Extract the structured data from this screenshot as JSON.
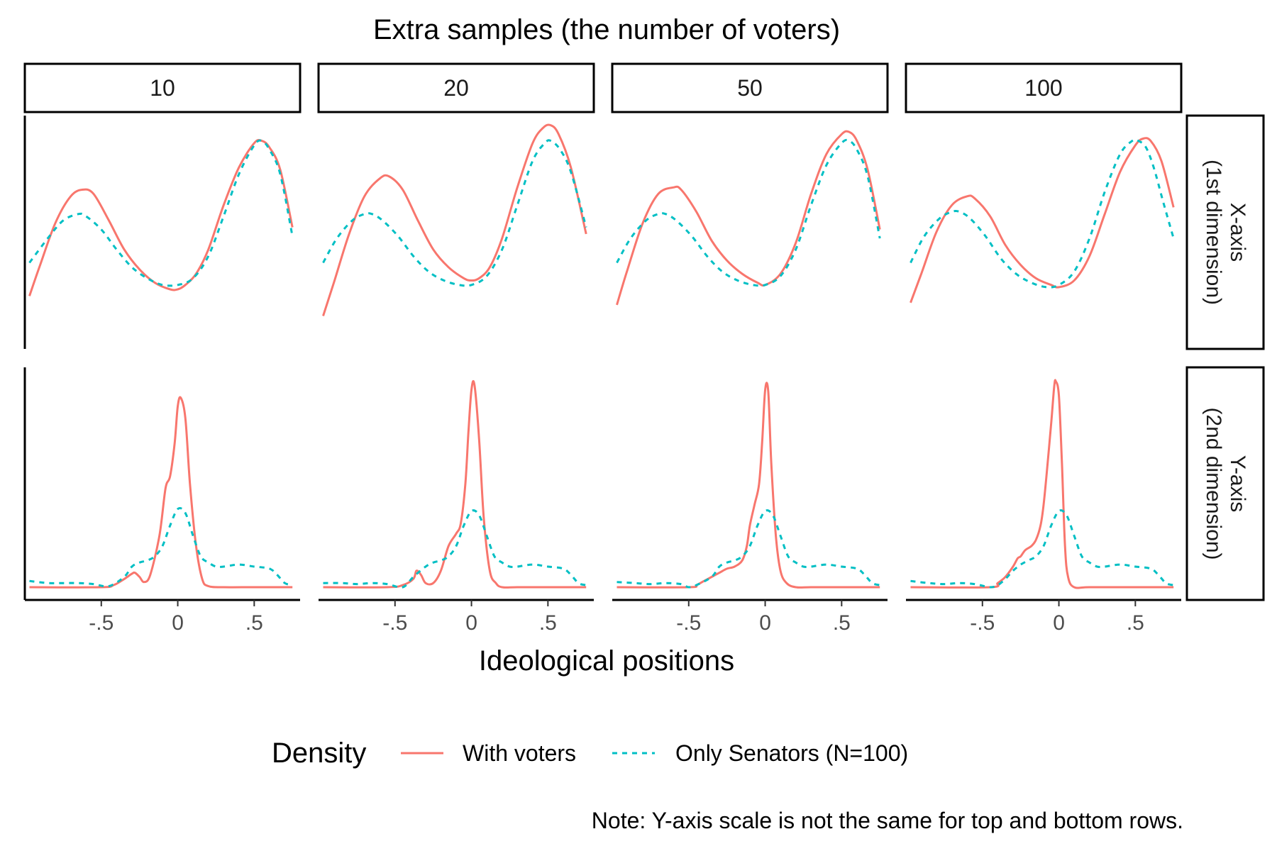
{
  "chart_data": {
    "type": "line",
    "title": "Extra samples (the number of voters)",
    "xlabel": "Ideological positions",
    "ylabel": "",
    "xlim": [
      -1.0,
      0.8
    ],
    "x_ticks": [
      {
        "value": -0.5,
        "label": "-.5"
      },
      {
        "value": 0,
        "label": "0"
      },
      {
        "value": 0.5,
        "label": ".5"
      }
    ],
    "column_facet_labels": [
      "10",
      "20",
      "50",
      "100"
    ],
    "row_facet_labels": [
      [
        "X-axis",
        "(1st dimension)"
      ],
      [
        "Y-axis",
        "(2nd dimension)"
      ]
    ],
    "row_ylims": [
      [
        0.16,
        1.04
      ],
      [
        0.0,
        1.02
      ]
    ],
    "legend": {
      "title": "Density",
      "position": "bottom",
      "entries": [
        {
          "label": "With voters",
          "color": "#F8766D",
          "dash": "solid"
        },
        {
          "label": "Only Senators (N=100)",
          "color": "#00BFC4",
          "dash": "dashed"
        }
      ]
    },
    "caption": "Note: Y-axis scale is not the same for top and bottom rows.",
    "panels": [
      {
        "row": 0,
        "col": 0,
        "series": [
          {
            "name": "With voters",
            "x": [
              -0.97,
              -0.9,
              -0.8,
              -0.7,
              -0.62,
              -0.55,
              -0.45,
              -0.35,
              -0.25,
              -0.15,
              -0.05,
              0,
              0.05,
              0.12,
              0.2,
              0.3,
              0.4,
              0.5,
              0.55,
              0.6,
              0.67,
              0.75
            ],
            "y": [
              0.29,
              0.43,
              0.62,
              0.74,
              0.77,
              0.75,
              0.63,
              0.5,
              0.41,
              0.35,
              0.32,
              0.32,
              0.34,
              0.39,
              0.5,
              0.7,
              0.87,
              0.98,
              0.99,
              0.96,
              0.86,
              0.6
            ]
          },
          {
            "name": "Only Senators (N=100)",
            "x": [
              -0.97,
              -0.85,
              -0.75,
              -0.65,
              -0.6,
              -0.5,
              -0.4,
              -0.3,
              -0.2,
              -0.1,
              0,
              0.1,
              0.2,
              0.3,
              0.4,
              0.5,
              0.55,
              0.6,
              0.67,
              0.75
            ],
            "y": [
              0.44,
              0.55,
              0.63,
              0.66,
              0.65,
              0.59,
              0.5,
              0.42,
              0.37,
              0.34,
              0.34,
              0.37,
              0.47,
              0.65,
              0.84,
              0.97,
              0.99,
              0.95,
              0.84,
              0.56
            ]
          }
        ]
      },
      {
        "row": 0,
        "col": 1,
        "series": [
          {
            "name": "With voters",
            "x": [
              -0.97,
              -0.9,
              -0.8,
              -0.7,
              -0.6,
              -0.54,
              -0.45,
              -0.35,
              -0.25,
              -0.15,
              -0.05,
              0,
              0.05,
              0.12,
              0.2,
              0.3,
              0.4,
              0.47,
              0.52,
              0.57,
              0.65,
              0.75
            ],
            "y": [
              0.2,
              0.35,
              0.57,
              0.74,
              0.82,
              0.83,
              0.77,
              0.63,
              0.5,
              0.42,
              0.37,
              0.36,
              0.37,
              0.42,
              0.55,
              0.78,
              0.98,
              1.05,
              1.06,
              1.02,
              0.87,
              0.57
            ]
          },
          {
            "name": "Only Senators (N=100)",
            "x": [
              -0.97,
              -0.88,
              -0.78,
              -0.7,
              -0.65,
              -0.58,
              -0.48,
              -0.38,
              -0.28,
              -0.18,
              -0.08,
              0,
              0.1,
              0.2,
              0.3,
              0.4,
              0.48,
              0.52,
              0.58,
              0.65,
              0.75
            ],
            "y": [
              0.44,
              0.55,
              0.63,
              0.66,
              0.66,
              0.63,
              0.56,
              0.47,
              0.4,
              0.36,
              0.34,
              0.34,
              0.38,
              0.5,
              0.7,
              0.9,
              0.98,
              0.99,
              0.95,
              0.85,
              0.6
            ]
          }
        ]
      },
      {
        "row": 0,
        "col": 2,
        "series": [
          {
            "name": "With voters",
            "x": [
              -0.97,
              -0.9,
              -0.8,
              -0.7,
              -0.6,
              -0.55,
              -0.45,
              -0.35,
              -0.25,
              -0.15,
              -0.05,
              0,
              0.1,
              0.2,
              0.3,
              0.4,
              0.5,
              0.55,
              0.6,
              0.67,
              0.75
            ],
            "y": [
              0.25,
              0.41,
              0.62,
              0.75,
              0.78,
              0.77,
              0.67,
              0.54,
              0.45,
              0.39,
              0.35,
              0.34,
              0.39,
              0.53,
              0.75,
              0.93,
              1.02,
              1.03,
              0.99,
              0.86,
              0.59
            ]
          },
          {
            "name": "Only Senators (N=100)",
            "x": [
              -0.97,
              -0.88,
              -0.78,
              -0.7,
              -0.65,
              -0.58,
              -0.48,
              -0.38,
              -0.28,
              -0.18,
              -0.08,
              0,
              0.1,
              0.2,
              0.3,
              0.4,
              0.5,
              0.55,
              0.6,
              0.67,
              0.75
            ],
            "y": [
              0.44,
              0.55,
              0.63,
              0.66,
              0.66,
              0.63,
              0.56,
              0.47,
              0.4,
              0.36,
              0.34,
              0.34,
              0.38,
              0.5,
              0.7,
              0.88,
              0.98,
              0.99,
              0.95,
              0.83,
              0.55
            ]
          }
        ]
      },
      {
        "row": 0,
        "col": 3,
        "series": [
          {
            "name": "With voters",
            "x": [
              -0.97,
              -0.9,
              -0.8,
              -0.7,
              -0.6,
              -0.55,
              -0.45,
              -0.35,
              -0.25,
              -0.15,
              -0.05,
              0,
              0.1,
              0.2,
              0.3,
              0.4,
              0.5,
              0.55,
              0.6,
              0.67,
              0.75
            ],
            "y": [
              0.26,
              0.39,
              0.58,
              0.7,
              0.74,
              0.73,
              0.65,
              0.52,
              0.43,
              0.37,
              0.34,
              0.33,
              0.36,
              0.47,
              0.66,
              0.85,
              0.97,
              1.0,
              0.99,
              0.9,
              0.69
            ]
          },
          {
            "name": "Only Senators (N=100)",
            "x": [
              -0.97,
              -0.88,
              -0.78,
              -0.7,
              -0.65,
              -0.58,
              -0.48,
              -0.38,
              -0.28,
              -0.18,
              -0.08,
              0,
              0.1,
              0.2,
              0.3,
              0.4,
              0.48,
              0.52,
              0.57,
              0.62,
              0.68,
              0.75
            ],
            "y": [
              0.44,
              0.56,
              0.64,
              0.67,
              0.67,
              0.64,
              0.56,
              0.46,
              0.39,
              0.35,
              0.33,
              0.34,
              0.4,
              0.55,
              0.76,
              0.93,
              0.99,
              0.99,
              0.96,
              0.87,
              0.72,
              0.55
            ]
          }
        ]
      },
      {
        "row": 1,
        "col": 0,
        "series": [
          {
            "name": "With voters",
            "x": [
              -0.97,
              -0.5,
              -0.42,
              -0.36,
              -0.3,
              -0.28,
              -0.25,
              -0.22,
              -0.18,
              -0.12,
              -0.08,
              -0.05,
              -0.02,
              0,
              0.02,
              0.05,
              0.08,
              0.12,
              0.16,
              0.2,
              0.3,
              0.5,
              0.75
            ],
            "y": [
              0.0,
              0.0,
              0.01,
              0.035,
              0.065,
              0.07,
              0.05,
              0.025,
              0.06,
              0.25,
              0.48,
              0.54,
              0.7,
              0.88,
              0.92,
              0.82,
              0.5,
              0.2,
              0.04,
              0.005,
              0.0,
              0.0,
              0.0
            ]
          },
          {
            "name": "Only Senators (N=100)",
            "x": [
              -0.97,
              -0.85,
              -0.75,
              -0.65,
              -0.55,
              -0.45,
              -0.35,
              -0.3,
              -0.25,
              -0.2,
              -0.15,
              -0.1,
              -0.05,
              0,
              0.05,
              0.1,
              0.15,
              0.2,
              0.25,
              0.3,
              0.4,
              0.5,
              0.6,
              0.65,
              0.7,
              0.75
            ],
            "y": [
              0.03,
              0.02,
              0.02,
              0.02,
              0.015,
              0.005,
              0.05,
              0.1,
              0.12,
              0.13,
              0.15,
              0.2,
              0.3,
              0.38,
              0.36,
              0.25,
              0.15,
              0.12,
              0.1,
              0.1,
              0.11,
              0.1,
              0.09,
              0.06,
              0.02,
              0.01
            ]
          }
        ]
      },
      {
        "row": 1,
        "col": 1,
        "series": [
          {
            "name": "With voters",
            "x": [
              -0.97,
              -0.55,
              -0.45,
              -0.38,
              -0.36,
              -0.33,
              -0.3,
              -0.25,
              -0.2,
              -0.15,
              -0.1,
              -0.07,
              -0.04,
              -0.02,
              0,
              0.02,
              0.05,
              0.08,
              0.12,
              0.16,
              0.2,
              0.3,
              0.5,
              0.75
            ],
            "y": [
              0.0,
              0.0,
              0.01,
              0.04,
              0.08,
              0.06,
              0.02,
              0.02,
              0.08,
              0.2,
              0.26,
              0.31,
              0.5,
              0.75,
              0.96,
              0.98,
              0.72,
              0.34,
              0.08,
              0.02,
              0.0,
              0.0,
              0.0,
              0.0
            ]
          },
          {
            "name": "Only Senators (N=100)",
            "x": [
              -0.97,
              -0.85,
              -0.75,
              -0.65,
              -0.55,
              -0.45,
              -0.38,
              -0.3,
              -0.25,
              -0.2,
              -0.15,
              -0.1,
              -0.05,
              0,
              0.05,
              0.1,
              0.15,
              0.2,
              0.25,
              0.3,
              0.4,
              0.5,
              0.6,
              0.65,
              0.7,
              0.75
            ],
            "y": [
              0.02,
              0.02,
              0.015,
              0.02,
              0.015,
              0.0,
              0.05,
              0.1,
              0.12,
              0.13,
              0.15,
              0.2,
              0.3,
              0.37,
              0.35,
              0.25,
              0.15,
              0.12,
              0.1,
              0.1,
              0.11,
              0.1,
              0.09,
              0.06,
              0.02,
              0.01
            ]
          }
        ]
      },
      {
        "row": 1,
        "col": 2,
        "series": [
          {
            "name": "With voters",
            "x": [
              -0.97,
              -0.5,
              -0.45,
              -0.4,
              -0.35,
              -0.3,
              -0.25,
              -0.2,
              -0.15,
              -0.12,
              -0.1,
              -0.07,
              -0.04,
              -0.02,
              0,
              0.02,
              0.04,
              0.07,
              0.1,
              0.14,
              0.2,
              0.3,
              0.5,
              0.75
            ],
            "y": [
              0.0,
              0.0,
              0.01,
              0.03,
              0.05,
              0.07,
              0.09,
              0.1,
              0.13,
              0.2,
              0.3,
              0.4,
              0.5,
              0.7,
              0.96,
              0.95,
              0.6,
              0.25,
              0.08,
              0.02,
              0.0,
              0.0,
              0.0,
              0.0
            ]
          },
          {
            "name": "Only Senators (N=100)",
            "x": [
              -0.97,
              -0.85,
              -0.75,
              -0.65,
              -0.55,
              -0.5,
              -0.45,
              -0.35,
              -0.3,
              -0.25,
              -0.2,
              -0.15,
              -0.1,
              -0.05,
              0,
              0.05,
              0.1,
              0.15,
              0.2,
              0.25,
              0.3,
              0.4,
              0.5,
              0.6,
              0.65,
              0.7,
              0.75
            ],
            "y": [
              0.025,
              0.02,
              0.015,
              0.02,
              0.015,
              0.0,
              0.01,
              0.05,
              0.1,
              0.12,
              0.13,
              0.15,
              0.2,
              0.3,
              0.37,
              0.35,
              0.25,
              0.15,
              0.12,
              0.1,
              0.1,
              0.11,
              0.1,
              0.09,
              0.06,
              0.02,
              0.01
            ]
          }
        ]
      },
      {
        "row": 1,
        "col": 3,
        "series": [
          {
            "name": "With voters",
            "x": [
              -0.97,
              -0.45,
              -0.4,
              -0.35,
              -0.3,
              -0.27,
              -0.25,
              -0.22,
              -0.18,
              -0.15,
              -0.12,
              -0.1,
              -0.08,
              -0.05,
              -0.03,
              -0.02,
              0,
              0.02,
              0.04,
              0.06,
              0.1,
              0.2,
              0.5,
              0.75
            ],
            "y": [
              0.0,
              0.0,
              0.02,
              0.05,
              0.1,
              0.14,
              0.15,
              0.18,
              0.2,
              0.23,
              0.3,
              0.4,
              0.55,
              0.8,
              0.98,
              1.0,
              0.93,
              0.6,
              0.2,
              0.05,
              0.0,
              0.0,
              0.0,
              0.0
            ]
          },
          {
            "name": "Only Senators (N=100)",
            "x": [
              -0.97,
              -0.85,
              -0.75,
              -0.65,
              -0.55,
              -0.45,
              -0.4,
              -0.35,
              -0.3,
              -0.25,
              -0.2,
              -0.15,
              -0.1,
              -0.05,
              0,
              0.05,
              0.1,
              0.15,
              0.2,
              0.25,
              0.3,
              0.4,
              0.5,
              0.6,
              0.65,
              0.7,
              0.75
            ],
            "y": [
              0.03,
              0.02,
              0.015,
              0.02,
              0.015,
              0.0,
              0.01,
              0.04,
              0.08,
              0.11,
              0.13,
              0.15,
              0.2,
              0.3,
              0.37,
              0.35,
              0.25,
              0.15,
              0.12,
              0.1,
              0.1,
              0.11,
              0.1,
              0.09,
              0.06,
              0.02,
              0.01
            ]
          }
        ]
      }
    ]
  }
}
